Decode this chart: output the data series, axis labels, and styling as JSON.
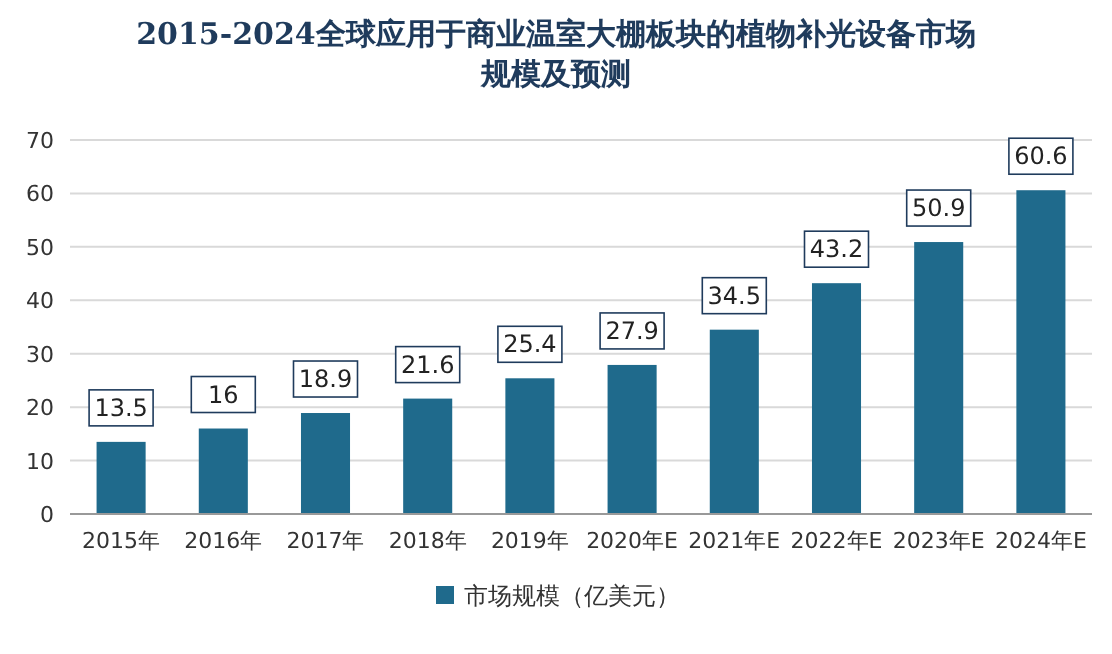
{
  "chart_data": {
    "type": "bar",
    "title": "2015-2024全球应用于商业温室大棚板块的植物补光设备市场规模及预测",
    "categories": [
      "2015年",
      "2016年",
      "2017年",
      "2018年",
      "2019年",
      "2020年E",
      "2021年E",
      "2022年E",
      "2023年E",
      "2024年E"
    ],
    "series": [
      {
        "name": "市场规模（亿美元）",
        "color": "#1f6a8c",
        "values": [
          13.5,
          16,
          18.9,
          21.6,
          25.4,
          27.9,
          34.5,
          43.2,
          50.9,
          60.6
        ]
      }
    ],
    "ylim": [
      0,
      70
    ],
    "yticks": [
      0,
      10,
      20,
      30,
      40,
      50,
      60,
      70
    ],
    "grid": "y",
    "legend": "bottom",
    "data_labels": true
  }
}
